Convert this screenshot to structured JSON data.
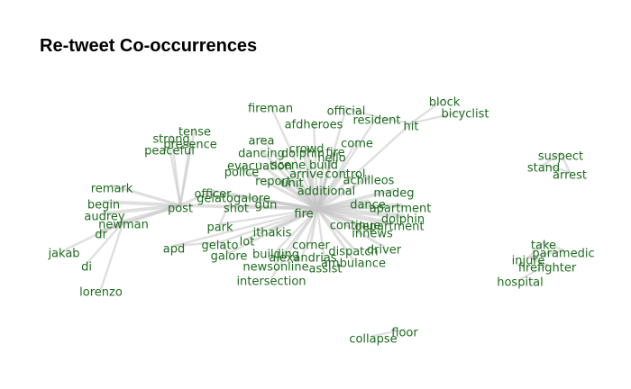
{
  "title": "Re-tweet Co-occurrences",
  "colors": {
    "background": "#ffffff",
    "label": "#1e6b1e",
    "edge": "#c4c4c4",
    "title": "#000000"
  },
  "nodes": [
    {
      "id": "fireman",
      "label": "fireman"
    },
    {
      "id": "official",
      "label": "official"
    },
    {
      "id": "block",
      "label": "block"
    },
    {
      "id": "bicyclist",
      "label": "bicyclist"
    },
    {
      "id": "resident",
      "label": "resident"
    },
    {
      "id": "afdheroes",
      "label": "afdheroes"
    },
    {
      "id": "hit",
      "label": "hit"
    },
    {
      "id": "tense",
      "label": "tense"
    },
    {
      "id": "strong",
      "label": "strong"
    },
    {
      "id": "presence",
      "label": "presence"
    },
    {
      "id": "peaceful",
      "label": "peaceful"
    },
    {
      "id": "area",
      "label": "area"
    },
    {
      "id": "come",
      "label": "come"
    },
    {
      "id": "crowd",
      "label": "crowd"
    },
    {
      "id": "dancing",
      "label": "dancing"
    },
    {
      "id": "dolphin_top",
      "label": "dolphin"
    },
    {
      "id": "fire_top",
      "label": "fire"
    },
    {
      "id": "hello",
      "label": "hello"
    },
    {
      "id": "evacuation",
      "label": "evacuation"
    },
    {
      "id": "scene",
      "label": "scene"
    },
    {
      "id": "build",
      "label": "build"
    },
    {
      "id": "police",
      "label": "police"
    },
    {
      "id": "arrive",
      "label": "arrive"
    },
    {
      "id": "control",
      "label": "control"
    },
    {
      "id": "report",
      "label": "report"
    },
    {
      "id": "unit",
      "label": "unit"
    },
    {
      "id": "achilleos",
      "label": "achilleos"
    },
    {
      "id": "remark",
      "label": "remark"
    },
    {
      "id": "officer",
      "label": "officer"
    },
    {
      "id": "gelatogalore",
      "label": "gelatogalore"
    },
    {
      "id": "additional",
      "label": "additional"
    },
    {
      "id": "madeg",
      "label": "madeg"
    },
    {
      "id": "begin",
      "label": "begin"
    },
    {
      "id": "post",
      "label": "post"
    },
    {
      "id": "shot",
      "label": "shot"
    },
    {
      "id": "gun",
      "label": "gun"
    },
    {
      "id": "dance",
      "label": "dance"
    },
    {
      "id": "apartment",
      "label": "apartment"
    },
    {
      "id": "audrey",
      "label": "audrey"
    },
    {
      "id": "fire",
      "label": "fire"
    },
    {
      "id": "dolphin",
      "label": "dolphin"
    },
    {
      "id": "newman",
      "label": "newman"
    },
    {
      "id": "park",
      "label": "park"
    },
    {
      "id": "continue",
      "label": "continue"
    },
    {
      "id": "department",
      "label": "department"
    },
    {
      "id": "dr",
      "label": "dr"
    },
    {
      "id": "ithakis",
      "label": "ithakis"
    },
    {
      "id": "innews",
      "label": "innews"
    },
    {
      "id": "apd",
      "label": "apd"
    },
    {
      "id": "gelato",
      "label": "gelato"
    },
    {
      "id": "lot",
      "label": "lot"
    },
    {
      "id": "corner",
      "label": "corner"
    },
    {
      "id": "dispatch",
      "label": "dispatch"
    },
    {
      "id": "driver",
      "label": "driver"
    },
    {
      "id": "jakab",
      "label": "jakab"
    },
    {
      "id": "galore",
      "label": "galore"
    },
    {
      "id": "building",
      "label": "building"
    },
    {
      "id": "alexandrias",
      "label": "alexandrias"
    },
    {
      "id": "ambulance",
      "label": "ambulance"
    },
    {
      "id": "di",
      "label": "di"
    },
    {
      "id": "newsonline",
      "label": "newsonline"
    },
    {
      "id": "assist",
      "label": "assist"
    },
    {
      "id": "intersection",
      "label": "intersection"
    },
    {
      "id": "lorenzo",
      "label": "lorenzo"
    },
    {
      "id": "floor",
      "label": "floor"
    },
    {
      "id": "collapse",
      "label": "collapse"
    },
    {
      "id": "suspect",
      "label": "suspect"
    },
    {
      "id": "stand",
      "label": "stand"
    },
    {
      "id": "arrest",
      "label": "arrest"
    },
    {
      "id": "take",
      "label": "take"
    },
    {
      "id": "paramedic",
      "label": "paramedic"
    },
    {
      "id": "injure",
      "label": "injure"
    },
    {
      "id": "firefighter",
      "label": "firefighter"
    },
    {
      "id": "hospital",
      "label": "hospital"
    }
  ],
  "edges": [
    [
      "fire",
      "dance",
      3
    ],
    [
      "fire",
      "apartment",
      3
    ],
    [
      "fire",
      "dolphin",
      3
    ],
    [
      "fire",
      "department",
      3
    ],
    [
      "fire",
      "madeg",
      2
    ],
    [
      "fire",
      "continue",
      2
    ],
    [
      "fire",
      "innews",
      2
    ],
    [
      "fire",
      "achilleos",
      2
    ],
    [
      "fire",
      "additional",
      1.5
    ],
    [
      "fire",
      "unit",
      1.5
    ],
    [
      "fire",
      "arrive",
      1.5
    ],
    [
      "fire",
      "control",
      1.5
    ],
    [
      "fire",
      "report",
      1.5
    ],
    [
      "fire",
      "scene",
      1.5
    ],
    [
      "fire",
      "build",
      1.5
    ],
    [
      "fire",
      "evacuation",
      1.5
    ],
    [
      "fire",
      "police",
      1.5
    ],
    [
      "fire",
      "crowd",
      1.5
    ],
    [
      "fire",
      "dancing",
      1.5
    ],
    [
      "fire",
      "dolphin_top",
      1.5
    ],
    [
      "fire",
      "fire_top",
      1.5
    ],
    [
      "fire",
      "hello",
      1.5
    ],
    [
      "fire",
      "come",
      1
    ],
    [
      "fire",
      "area",
      1
    ],
    [
      "fire",
      "afdheroes",
      1
    ],
    [
      "fire",
      "resident",
      1
    ],
    [
      "fire",
      "official",
      1
    ],
    [
      "fire",
      "fireman",
      1
    ],
    [
      "fire",
      "hit",
      1
    ],
    [
      "fire",
      "gun",
      1.5
    ],
    [
      "fire",
      "shot",
      1.5
    ],
    [
      "fire",
      "officer",
      1.5
    ],
    [
      "fire",
      "gelatogalore",
      1.5
    ],
    [
      "fire",
      "post",
      2
    ],
    [
      "fire",
      "park",
      1
    ],
    [
      "fire",
      "ithakis",
      1
    ],
    [
      "fire",
      "lot",
      1
    ],
    [
      "fire",
      "corner",
      1.5
    ],
    [
      "fire",
      "dispatch",
      1.5
    ],
    [
      "fire",
      "driver",
      1.5
    ],
    [
      "fire",
      "building",
      1
    ],
    [
      "fire",
      "alexandrias",
      1
    ],
    [
      "fire",
      "ambulance",
      1.5
    ],
    [
      "fire",
      "assist",
      1
    ],
    [
      "fire",
      "newsonline",
      1
    ],
    [
      "fire",
      "intersection",
      1
    ],
    [
      "fire",
      "galore",
      1
    ],
    [
      "fire",
      "gelato",
      1
    ],
    [
      "fire",
      "apd",
      1
    ],
    [
      "post",
      "begin",
      2
    ],
    [
      "post",
      "audrey",
      2
    ],
    [
      "post",
      "newman",
      2
    ],
    [
      "post",
      "remark",
      1.5
    ],
    [
      "post",
      "tense",
      1
    ],
    [
      "post",
      "strong",
      1
    ],
    [
      "post",
      "presence",
      1
    ],
    [
      "post",
      "peaceful",
      1
    ],
    [
      "post",
      "dr",
      1.5
    ],
    [
      "post",
      "officer",
      1.5
    ],
    [
      "newman",
      "jakab",
      1
    ],
    [
      "newman",
      "di",
      1
    ],
    [
      "newman",
      "lorenzo",
      1
    ],
    [
      "newman",
      "dr",
      1.5
    ],
    [
      "hit",
      "block",
      1
    ],
    [
      "hit",
      "bicyclist",
      1
    ],
    [
      "resident",
      "hit",
      1
    ],
    [
      "official",
      "resident",
      1
    ],
    [
      "gelato",
      "galore",
      1
    ],
    [
      "apd",
      "gelato",
      1
    ],
    [
      "park",
      "gelatogalore",
      1
    ],
    [
      "floor",
      "collapse",
      1
    ],
    [
      "stand",
      "suspect",
      1
    ],
    [
      "stand",
      "arrest",
      1
    ],
    [
      "suspect",
      "arrest",
      1
    ],
    [
      "take",
      "paramedic",
      1
    ],
    [
      "injure",
      "firefighter",
      1
    ],
    [
      "injure",
      "paramedic",
      1
    ],
    [
      "firefighter",
      "hospital",
      1
    ],
    [
      "take",
      "injure",
      1
    ]
  ]
}
